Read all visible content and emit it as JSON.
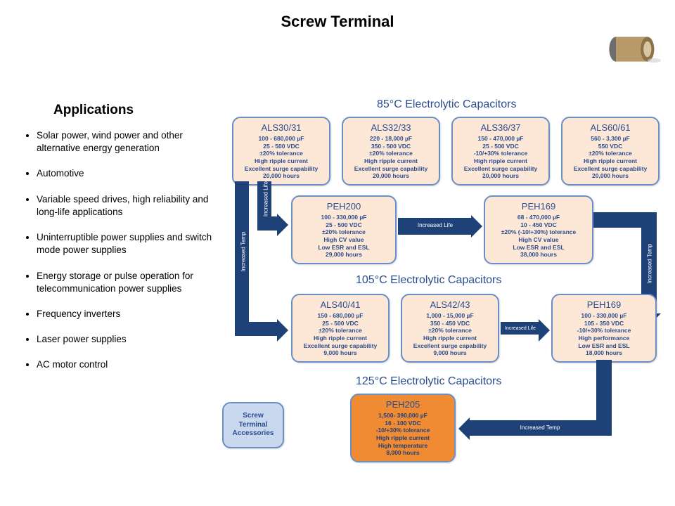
{
  "page_title": "Screw Terminal",
  "applications_heading": "Applications",
  "applications": [
    "Solar power, wind power and other alternative energy generation",
    "Automotive",
    "Variable speed drives, high reliability and long-life applications",
    "Uninterruptible power supplies and switch mode power supplies",
    "Energy storage or pulse operation for telecommunication power supplies",
    "Frequency inverters",
    "Laser power supplies",
    "AC motor control"
  ],
  "sections": {
    "s85": "85°C Electrolytic Capacitors",
    "s105": "105°C Electrolytic Capacitors",
    "s125": "125°C Electrolytic Capacitors"
  },
  "labels": {
    "increased_life": "Increased Life",
    "increased_temp": "Increased Temp",
    "accessories": "Screw Terminal Accessories"
  },
  "cards": {
    "als30": {
      "model": "ALS30/31",
      "specs": "100 - 680,000 µF\n25 - 500 VDC\n±20% tolerance\nHigh ripple current\nExcellent surge capability\n20,000 hours"
    },
    "als32": {
      "model": "ALS32/33",
      "specs": "220 - 18,000 µF\n350 - 500 VDC\n±20% tolerance\nHigh ripple current\nExcellent surge capability\n20,000 hours"
    },
    "als36": {
      "model": "ALS36/37",
      "specs": "150 - 470,000 µF\n25 - 500 VDC\n-10/+30% tolerance\nHigh ripple current\nExcellent surge capability\n20,000 hours"
    },
    "als60": {
      "model": "ALS60/61",
      "specs": "560 - 3,300 µF\n550 VDC\n±20%  tolerance\nHigh ripple current\nExcellent surge capability\n20,000 hours"
    },
    "peh200": {
      "model": "PEH200",
      "specs": "100 - 330,000 µF\n25 - 500 VDC\n±20% tolerance\nHigh CV value\nLow ESR and ESL\n29,000 hours"
    },
    "peh169a": {
      "model": "PEH169",
      "specs": "68 - 470,000 µF\n10 - 450 VDC\n±20% (-10/+30%) tolerance\nHigh CV value\nLow ESR and ESL\n38,000 hours"
    },
    "als40": {
      "model": "ALS40/41",
      "specs": "150 - 680,000 µF\n25 - 500 VDC\n±20% tolerance\nHigh ripple current\nExcellent surge capability\n9,000 hours"
    },
    "als42": {
      "model": "ALS42/43",
      "specs": "1,000 - 15,000 µF\n350 - 450 VDC\n±20% tolerance\nHigh ripple current\nExcellent surge capability\n9,000 hours"
    },
    "peh169b": {
      "model": "PEH169",
      "specs": "100 - 330,000 µF\n105 - 350 VDC\n-10/+30% tolerance\nHigh performance\nLow ESR and ESL\n18,000 hours"
    },
    "peh205": {
      "model": "PEH205",
      "specs": "1,500- 390,000 µF\n16 - 100 VDC\n-10/+30% tolerance\nHigh ripple current\nHigh temperature\n8,000 hours"
    }
  },
  "style": {
    "card_border": "#6a8fc7",
    "card_bg_peach": "#fde8d8",
    "card_bg_orange": "#f08a33",
    "card_bg_blue": "#c9d8ef",
    "arrow_color": "#1e4178",
    "text_navy": "#2a4d8f"
  }
}
